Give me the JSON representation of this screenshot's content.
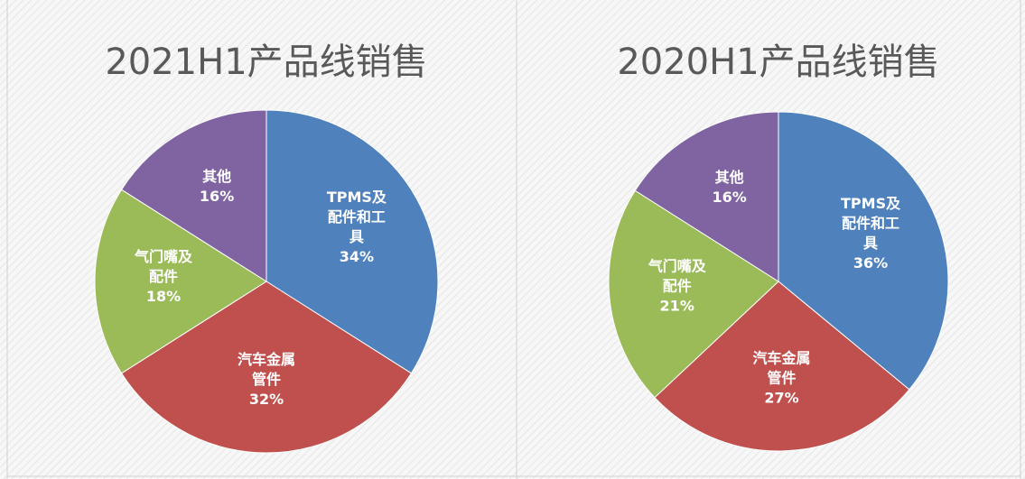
{
  "chart_data": [
    {
      "type": "pie",
      "title": "2021H1产品线销售",
      "categories": [
        "TPMS及配件和工具",
        "汽车金属管件",
        "气门嘴及配件",
        "其他"
      ],
      "values": [
        34,
        32,
        18,
        16
      ],
      "value_labels": [
        "34%",
        "32%",
        "18%",
        "16%"
      ],
      "colors": [
        "#4f81bd",
        "#c0504d",
        "#9bbb59",
        "#8064a2"
      ]
    },
    {
      "type": "pie",
      "title": "2020H1产品线销售",
      "categories": [
        "TPMS及配件和工具",
        "汽车金属管件",
        "气门嘴及配件",
        "其他"
      ],
      "values": [
        36,
        27,
        21,
        16
      ],
      "value_labels": [
        "36%",
        "27%",
        "21%",
        "16%"
      ],
      "colors": [
        "#4f81bd",
        "#c0504d",
        "#9bbb59",
        "#8064a2"
      ]
    }
  ]
}
